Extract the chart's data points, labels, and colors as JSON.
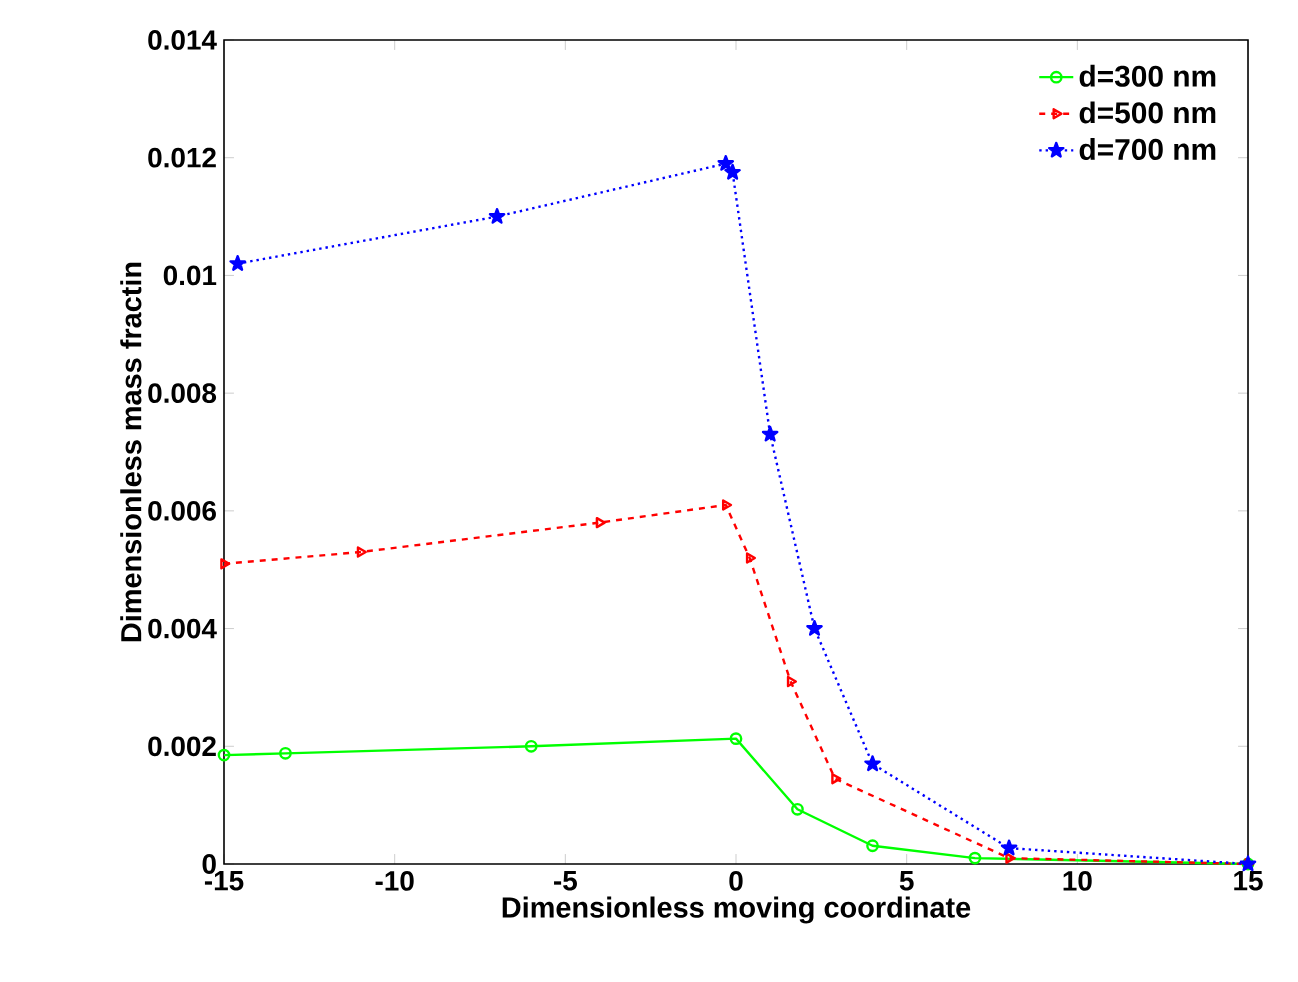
{
  "chart_data": {
    "type": "line",
    "xlabel": "Dimensionless moving coordinate",
    "ylabel": "Dimensionless mass fractin",
    "xlim": [
      -15,
      15
    ],
    "xticks": [
      -15,
      -10,
      -5,
      0,
      5,
      10,
      15
    ],
    "ylim": [
      0,
      0.014
    ],
    "yticks": [
      0,
      0.002,
      0.004,
      0.006,
      0.008,
      0.01,
      0.012,
      0.014
    ],
    "grid": false,
    "legend": "top right",
    "series": [
      {
        "name": "d=300 nm",
        "color": "#00ff00",
        "marker": "circle",
        "line_style": "solid",
        "x": [
          -15,
          -13.2,
          -6,
          0,
          1.8,
          4,
          7,
          15
        ],
        "values": [
          0.00185,
          0.00188,
          0.002,
          0.00213,
          0.00093,
          0.00031,
          0.0001,
          0.0
        ]
      },
      {
        "name": "d=500 nm",
        "color": "#ff0000",
        "marker": "triangle",
        "line_style": "dashed",
        "x": [
          -15,
          -11,
          -4,
          -0.3,
          0.4,
          1.6,
          2.9,
          8,
          15
        ],
        "values": [
          0.0051,
          0.0053,
          0.0058,
          0.0061,
          0.0052,
          0.0031,
          0.00145,
          0.0001,
          0.0
        ]
      },
      {
        "name": "d=700 nm",
        "color": "#0000ff",
        "marker": "star",
        "line_style": "dotted",
        "x": [
          -14.6,
          -7,
          -0.3,
          -0.1,
          1,
          2.3,
          4,
          8,
          15
        ],
        "values": [
          0.0102,
          0.011,
          0.0119,
          0.01175,
          0.0073,
          0.004,
          0.0017,
          0.00027,
          0.0
        ]
      }
    ]
  }
}
